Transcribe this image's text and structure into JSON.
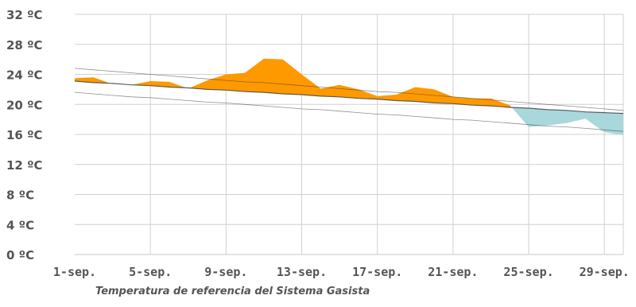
{
  "chart_data": {
    "type": "area",
    "title": "",
    "xlabel": "Temperatura de referencia del Sistema Gasista",
    "ylabel": "",
    "ylim": [
      0,
      32
    ],
    "yticks": [
      0,
      4,
      8,
      12,
      16,
      20,
      24,
      28,
      32
    ],
    "ytick_labels": [
      "0 ºC",
      "4 ºC",
      "8 ºC",
      "12 ºC",
      "16 ºC",
      "20 ºC",
      "24 ºC",
      "28 ºC",
      "32 ºC"
    ],
    "xlim": [
      1,
      30
    ],
    "xticks": [
      1,
      5,
      9,
      13,
      17,
      21,
      25,
      29
    ],
    "xtick_labels": [
      "1-sep.",
      "5-sep.",
      "9-sep.",
      "13-sep.",
      "17-sep.",
      "21-sep.",
      "25-sep.",
      "29-sep."
    ],
    "grid": true,
    "x": [
      1,
      2,
      3,
      4,
      5,
      6,
      7,
      8,
      9,
      10,
      11,
      12,
      13,
      14,
      15,
      16,
      17,
      18,
      19,
      20,
      21,
      22,
      23,
      24,
      25,
      26,
      27,
      28,
      29,
      30
    ],
    "series": [
      {
        "values": [
          23.5,
          23.6,
          22.7,
          22.6,
          23.1,
          23.0,
          22.1,
          23.2,
          24.0,
          24.2,
          26.1,
          26.0,
          24.0,
          22.1,
          22.6,
          22.0,
          21.1,
          21.3,
          22.3,
          22.0,
          21.0,
          20.8,
          20.8,
          19.9,
          17.0,
          17.2,
          17.5,
          18.1,
          16.3,
          15.9
        ]
      },
      {
        "values": [
          24.8,
          24.6,
          24.4,
          24.2,
          24.0,
          23.8,
          23.6,
          23.4,
          23.2,
          23.0,
          22.9,
          22.7,
          22.5,
          22.3,
          22.1,
          21.9,
          21.7,
          21.6,
          21.4,
          21.2,
          21.0,
          20.8,
          20.6,
          20.4,
          20.2,
          20.0,
          19.8,
          19.6,
          19.4,
          19.2
        ]
      },
      {
        "values": [
          23.1,
          22.9,
          22.8,
          22.6,
          22.5,
          22.3,
          22.2,
          22.0,
          21.9,
          21.7,
          21.6,
          21.4,
          21.3,
          21.1,
          21.0,
          20.8,
          20.7,
          20.5,
          20.4,
          20.2,
          20.1,
          19.9,
          19.8,
          19.6,
          19.5,
          19.3,
          19.2,
          19.0,
          18.9,
          18.8
        ]
      },
      {
        "values": [
          21.6,
          21.4,
          21.2,
          21.0,
          20.9,
          20.7,
          20.5,
          20.3,
          20.2,
          20.0,
          19.8,
          19.6,
          19.4,
          19.3,
          19.1,
          18.9,
          18.7,
          18.6,
          18.4,
          18.2,
          18.0,
          17.9,
          17.7,
          17.5,
          17.3,
          17.1,
          17.0,
          16.8,
          16.6,
          16.4
        ]
      }
    ],
    "colors": {
      "above": "#ff9900",
      "below": "#a8d8dc",
      "lines": "#444444",
      "grid": "#d0d0d0",
      "ticks": "#555555"
    }
  }
}
